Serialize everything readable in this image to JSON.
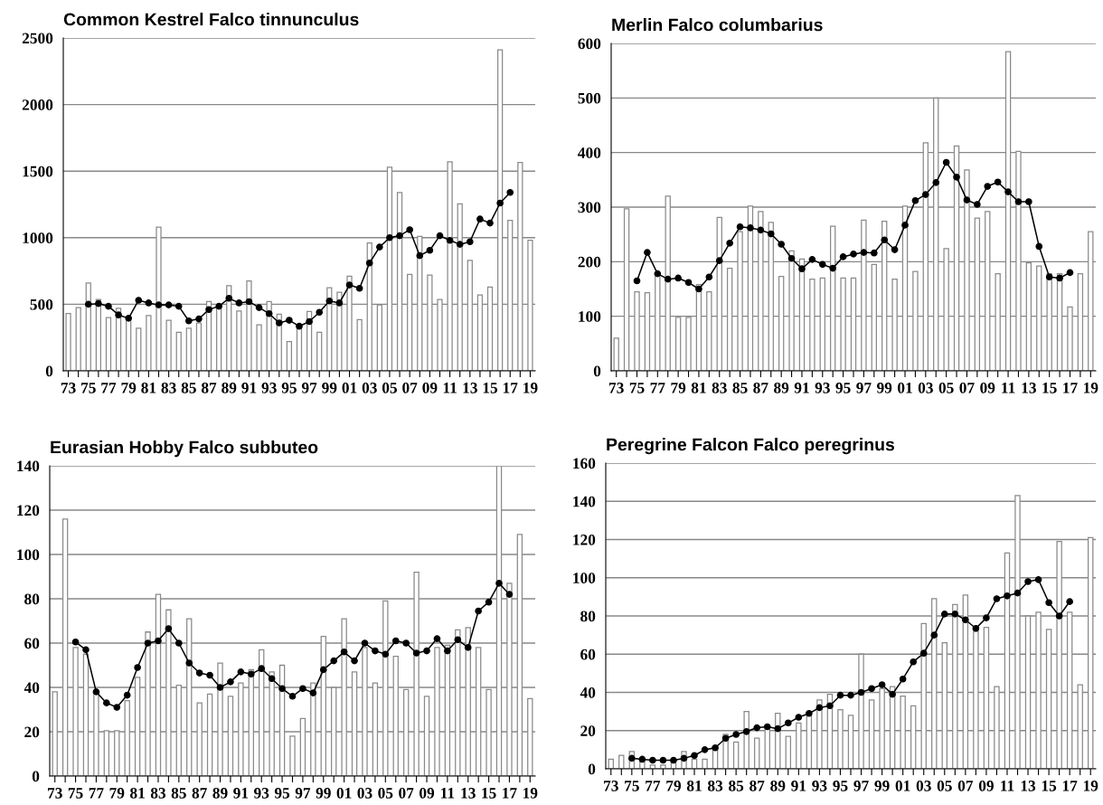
{
  "chart_data": [
    {
      "type": "bar",
      "title": "Common Kestrel Falco tinnunculus",
      "categories": [
        "73",
        null,
        "75",
        null,
        "77",
        null,
        "79",
        null,
        "81",
        null,
        "83",
        null,
        "85",
        null,
        "87",
        null,
        "89",
        null,
        "91",
        null,
        "93",
        null,
        "95",
        null,
        "97",
        null,
        "99",
        null,
        "01",
        null,
        "03",
        null,
        "05",
        null,
        "07",
        null,
        "09",
        null,
        "11",
        null,
        "13",
        null,
        "15",
        null,
        "17",
        null,
        "19"
      ],
      "series": [
        {
          "color": "#ffffff",
          "values": [
            430,
            475,
            660,
            535,
            400,
            470,
            380,
            320,
            415,
            1080,
            380,
            290,
            320,
            360,
            520,
            480,
            640,
            450,
            675,
            345,
            520,
            425,
            220,
            330,
            445,
            290,
            625,
            590,
            710,
            385,
            960,
            495,
            1530,
            1340,
            725,
            1010,
            720,
            535,
            1570,
            1255,
            830,
            570,
            630,
            2410,
            1130,
            1565,
            980
          ]
        },
        {
          "type": "line",
          "color": "#000000",
          "values": [
            null,
            null,
            500,
            505,
            485,
            420,
            395,
            530,
            510,
            495,
            495,
            485,
            375,
            390,
            460,
            485,
            545,
            510,
            520,
            475,
            430,
            360,
            380,
            335,
            370,
            440,
            525,
            510,
            645,
            620,
            810,
            930,
            1000,
            1015,
            1060,
            865,
            905,
            1015,
            980,
            950,
            970,
            1140,
            1110,
            1260,
            1340,
            null,
            null
          ]
        }
      ],
      "ylim": [
        0,
        2500
      ],
      "yticks": [
        0,
        500,
        1000,
        1500,
        2000,
        2500
      ],
      "grid": "y",
      "marker": "circle"
    },
    {
      "type": "bar",
      "title": "Merlin Falco columbarius",
      "categories": [
        "73",
        null,
        "75",
        null,
        "77",
        null,
        "79",
        null,
        "81",
        null,
        "83",
        null,
        "85",
        null,
        "87",
        null,
        "89",
        null,
        "91",
        null,
        "93",
        null,
        "95",
        null,
        "97",
        null,
        "99",
        null,
        "01",
        null,
        "03",
        null,
        "05",
        null,
        "07",
        null,
        "09",
        null,
        "11",
        null,
        "13",
        null,
        "15",
        null,
        "17",
        null,
        "19"
      ],
      "series": [
        {
          "color": "#ffffff",
          "values": [
            60,
            297,
            145,
            143,
            175,
            320,
            98,
            98,
            158,
            145,
            281,
            188,
            255,
            302,
            292,
            272,
            173,
            220,
            205,
            168,
            170,
            265,
            170,
            170,
            276,
            195,
            274,
            168,
            302,
            182,
            418,
            500,
            224,
            412,
            368,
            280,
            292,
            178,
            585,
            402,
            198,
            192,
            178,
            178,
            117,
            178,
            255
          ]
        },
        {
          "type": "line",
          "color": "#000000",
          "values": [
            null,
            null,
            165,
            217,
            178,
            168,
            170,
            162,
            150,
            172,
            202,
            234,
            264,
            262,
            258,
            251,
            232,
            206,
            187,
            204,
            195,
            188,
            209,
            214,
            217,
            216,
            240,
            222,
            267,
            312,
            323,
            345,
            382,
            355,
            313,
            305,
            338,
            346,
            328,
            310,
            310,
            228,
            172,
            170,
            180,
            null,
            null
          ]
        }
      ],
      "ylim": [
        0,
        600
      ],
      "yticks": [
        0,
        100,
        200,
        300,
        400,
        500,
        600
      ],
      "grid": "y",
      "marker": "circle"
    },
    {
      "type": "bar",
      "title": "Eurasian Hobby Falco subbuteo",
      "categories": [
        "73",
        null,
        "75",
        null,
        "77",
        null,
        "79",
        null,
        "81",
        null,
        "83",
        null,
        "85",
        null,
        "87",
        null,
        "89",
        null,
        "91",
        null,
        "93",
        null,
        "95",
        null,
        "97",
        null,
        "99",
        null,
        "01",
        null,
        "03",
        null,
        "05",
        null,
        "07",
        null,
        "09",
        null,
        "11",
        null,
        "13",
        null,
        "15",
        null,
        "17",
        null,
        "19"
      ],
      "series": [
        {
          "color": "#ffffff",
          "values": [
            38,
            116,
            58,
            55,
            37,
            20.5,
            20.5,
            34,
            44.5,
            65,
            82,
            75,
            41,
            71,
            33,
            37,
            51,
            36,
            42,
            48,
            57,
            47,
            50,
            18,
            26,
            42,
            63,
            40,
            71,
            47,
            58,
            42,
            79,
            54,
            39,
            92,
            36,
            58,
            59,
            66,
            67,
            58,
            39,
            140,
            87,
            109,
            35
          ]
        },
        {
          "type": "line",
          "color": "#000000",
          "values": [
            null,
            null,
            60.5,
            57,
            38,
            33,
            31,
            36.5,
            49,
            60,
            61,
            66.5,
            60,
            51,
            46.5,
            45.5,
            40,
            42.5,
            47,
            46,
            48.5,
            44,
            39.5,
            36,
            39.5,
            37.5,
            48,
            52,
            56,
            52,
            60,
            56.5,
            55,
            61,
            60,
            55.5,
            56.5,
            62,
            56.5,
            61.5,
            58,
            74.5,
            78.5,
            87,
            82,
            null,
            null
          ]
        }
      ],
      "ylim": [
        0,
        140
      ],
      "yticks": [
        0,
        20,
        40,
        60,
        80,
        100,
        120,
        140
      ],
      "grid": "y",
      "marker": "circle"
    },
    {
      "type": "bar",
      "title": "Peregrine Falcon Falco peregrinus",
      "categories": [
        "73",
        null,
        "75",
        null,
        "77",
        null,
        "79",
        null,
        "81",
        null,
        "83",
        null,
        "85",
        null,
        "87",
        null,
        "89",
        null,
        "91",
        null,
        "93",
        null,
        "95",
        null,
        "97",
        null,
        "99",
        null,
        "01",
        null,
        "03",
        null,
        "05",
        null,
        "07",
        null,
        "09",
        null,
        "11",
        null,
        "13",
        null,
        "15",
        null,
        "17",
        null,
        "19"
      ],
      "series": [
        {
          "color": "#ffffff",
          "values": [
            5,
            7,
            9,
            5,
            2,
            2,
            4,
            9,
            5,
            5,
            10,
            18,
            14,
            30,
            16,
            21,
            29,
            17,
            24,
            28,
            36,
            39,
            31,
            28,
            60,
            36,
            42,
            43,
            38,
            33,
            76,
            89,
            66,
            86,
            91,
            72,
            74,
            43,
            113,
            143,
            80,
            82,
            73,
            119,
            82,
            44,
            121
          ]
        },
        {
          "type": "line",
          "color": "#000000",
          "values": [
            null,
            null,
            5.5,
            5,
            4.5,
            4.5,
            4.5,
            5.5,
            7,
            10,
            11,
            16,
            18,
            19.5,
            21.5,
            22,
            21,
            24,
            27,
            29,
            32,
            33,
            38.5,
            38.5,
            40,
            42,
            44,
            39,
            47,
            56,
            60.5,
            70,
            81,
            81,
            78,
            73.5,
            79,
            89,
            90.5,
            92,
            98,
            99,
            87,
            80,
            87.5,
            null,
            null
          ]
        }
      ],
      "ylim": [
        0,
        160
      ],
      "yticks": [
        0,
        20,
        40,
        60,
        80,
        100,
        120,
        140,
        160
      ],
      "grid": "y",
      "marker": "circle"
    }
  ]
}
